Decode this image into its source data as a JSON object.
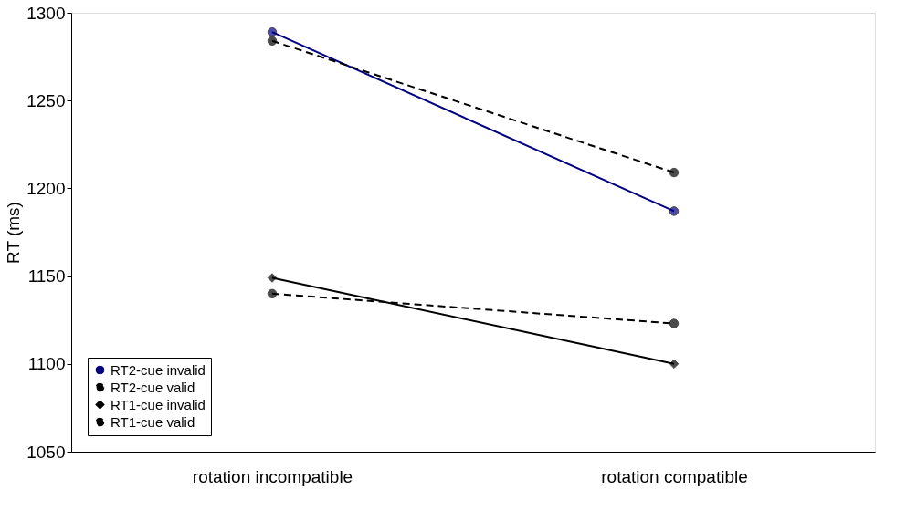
{
  "chart_data": {
    "type": "line",
    "ylabel": "RT (ms)",
    "categories": [
      "rotation incompatible",
      "rotation compatible"
    ],
    "ylim": [
      1050,
      1300
    ],
    "yticks": [
      1050,
      1100,
      1150,
      1200,
      1250,
      1300
    ],
    "grid": false,
    "legend": "bottom left",
    "series": [
      {
        "name": "RT2-cue invalid",
        "color": "#000080",
        "marker": "circle",
        "line_style": "solid",
        "values": [
          1289,
          1187
        ]
      },
      {
        "name": "RT2-cue valid",
        "color": "#000000",
        "marker": "circle",
        "line_style": "dashed",
        "values": [
          1284,
          1209
        ]
      },
      {
        "name": "RT1-cue invalid",
        "color": "#000000",
        "marker": "diamond",
        "line_style": "solid",
        "values": [
          1149,
          1100
        ]
      },
      {
        "name": "RT1-cue valid",
        "color": "#000000",
        "marker": "circle",
        "line_style": "dashed",
        "values": [
          1140,
          1123
        ]
      }
    ]
  }
}
